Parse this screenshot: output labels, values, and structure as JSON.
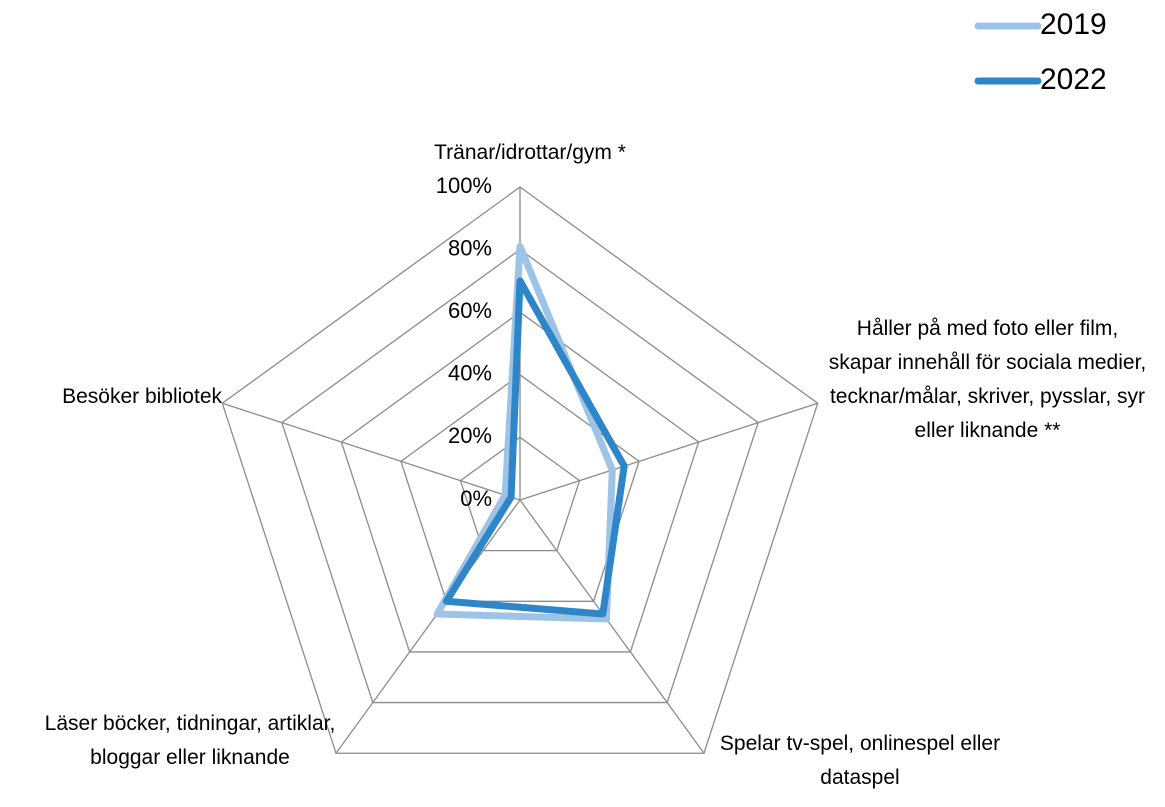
{
  "chart_data": {
    "type": "radar",
    "categories": [
      "Tränar/idrottar/gym *",
      "Håller på med foto eller film, skapar innehåll för sociala medier, tecknar/målar, skriver, pysslar, syr eller liknande **",
      "Spelar tv-spel, onlinespel eller dataspel",
      "Läser böcker, tidningar, artiklar, bloggar eller liknande",
      "Besöker bibliotek"
    ],
    "series": [
      {
        "name": "2019",
        "color": "#9dc3e6",
        "values": [
          81,
          31,
          47,
          45,
          5
        ]
      },
      {
        "name": "2022",
        "color": "#2e86c8",
        "values": [
          70,
          35,
          45,
          40,
          3
        ]
      }
    ],
    "ylim": [
      0,
      100
    ],
    "yticks": [
      {
        "value": 0,
        "label": "0%"
      },
      {
        "value": 20,
        "label": "20%"
      },
      {
        "value": 40,
        "label": "40%"
      },
      {
        "value": 60,
        "label": "60%"
      },
      {
        "value": 80,
        "label": "80%"
      },
      {
        "value": 100,
        "label": "100%"
      }
    ],
    "grid": true,
    "legend": "top-right"
  }
}
